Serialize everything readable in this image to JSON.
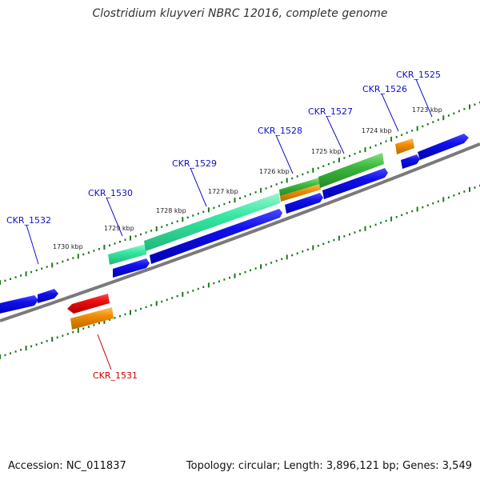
{
  "title": "Clostridium kluyveri NBRC 12016, complete genome",
  "footer": {
    "accession": "Accession: NC_011837",
    "stats": "Topology: circular; Length: 3,896,121 bp; Genes: 3,549"
  },
  "tick_labels": [
    "1723 kbp",
    "1724 kbp",
    "1725 kbp",
    "1726 kbp",
    "1727 kbp",
    "1728 kbp",
    "1729 kbp",
    "1730 kbp"
  ],
  "gene_labels": [
    "CKR_1525",
    "CKR_1526",
    "CKR_1527",
    "CKR_1528",
    "CKR_1529",
    "CKR_1530",
    "CKR_1531",
    "CKR_1532"
  ],
  "colors": {
    "forward_gene": "#0a00e0",
    "reverse_gene": "#e00000",
    "label_forward": "#1010cc",
    "label_reverse": "#cc0000",
    "cds_green_light": "#33e8a0",
    "cds_green": "#3cb83c",
    "cds_orange": "#f08c00",
    "backbone": "#808080",
    "tick": "#1a7a1a"
  }
}
